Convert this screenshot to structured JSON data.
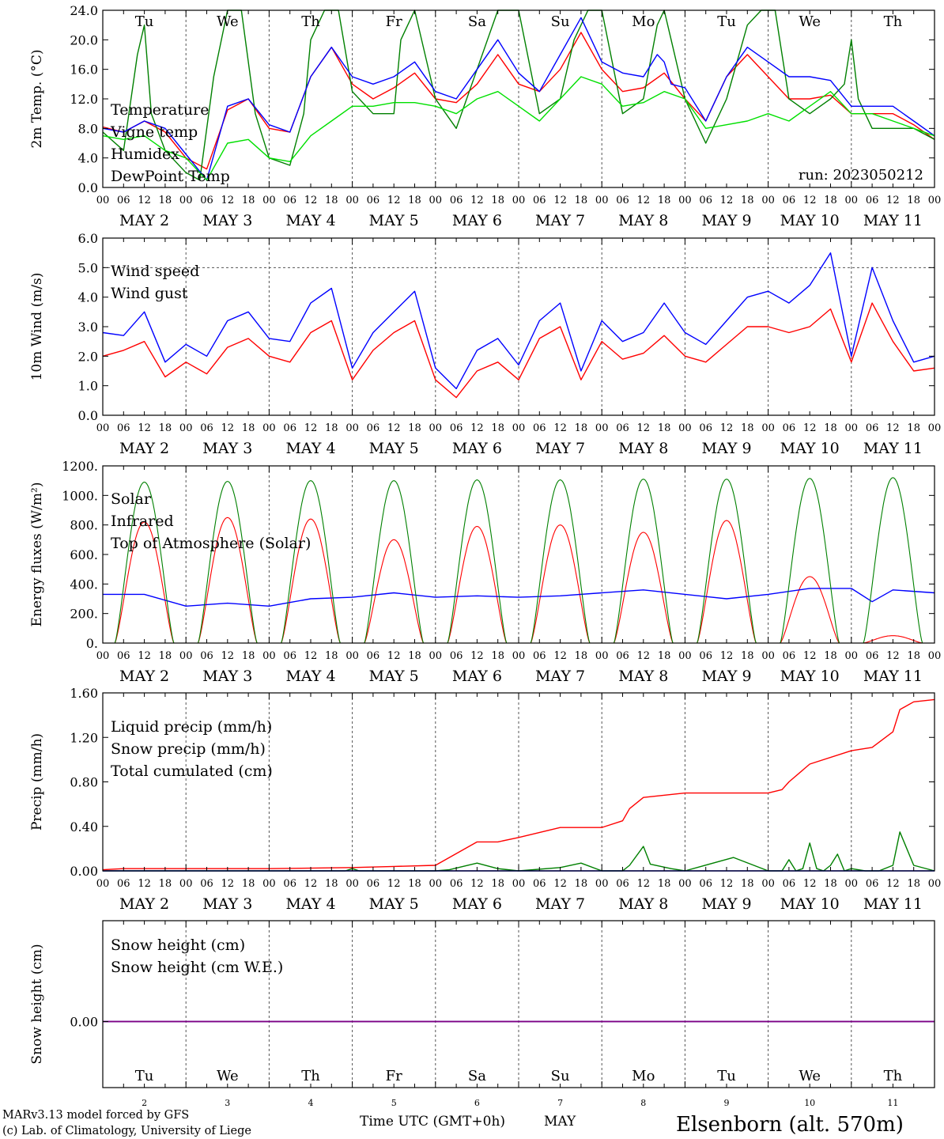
{
  "days": [
    "Tu",
    "We",
    "Th",
    "Fr",
    "Sa",
    "Su",
    "Mo",
    "Tu",
    "We",
    "Th"
  ],
  "weekend_day_indices": [
    4,
    5
  ],
  "date_labels": [
    "MAY  2",
    "MAY  3",
    "MAY  4",
    "MAY  5",
    "MAY  6",
    "MAY  7",
    "MAY  8",
    "MAY  9",
    "MAY 10",
    "MAY 11"
  ],
  "hour_ticks": [
    "00",
    "06",
    "12",
    "18"
  ],
  "bottom_day_numbers": [
    "2",
    "3",
    "4",
    "5",
    "6",
    "7",
    "8",
    "9",
    "10",
    "11"
  ],
  "run_label": "run: 2023050212",
  "x_axis_title": "Time UTC (GMT+0h)",
  "x_axis_month": "MAY",
  "credits": [
    "MARv3.13 model forced by GFS",
    "(c) Lab. of Climatology, University of Liege"
  ],
  "station_label": "Elsenborn (alt. 570m)",
  "colors": {
    "red": "#ff0000",
    "blue": "#0000ff",
    "dark_green": "#008000",
    "light_green": "#00e000",
    "purple": "#800080"
  },
  "chart_data": [
    {
      "type": "line",
      "ylabel": "2m Temp. (°C)",
      "ylim": [
        0,
        24
      ],
      "yticks": [
        "0.0",
        "4.0",
        "8.0",
        "12.0",
        "16.0",
        "20.0",
        "24.0"
      ],
      "x_range_hours": [
        0,
        240
      ],
      "series": [
        {
          "name": "Temperature",
          "color": "red",
          "x": [
            0,
            6,
            12,
            18,
            24,
            30,
            36,
            42,
            48,
            54,
            60,
            66,
            72,
            78,
            84,
            90,
            96,
            102,
            108,
            114,
            120,
            126,
            132,
            138,
            144,
            150,
            156,
            162,
            168,
            174,
            180,
            186,
            192,
            198,
            204,
            210,
            216,
            222,
            228,
            234,
            240
          ],
          "y": [
            8.2,
            7.5,
            9,
            7.5,
            4,
            2.5,
            10.5,
            12,
            8,
            7.5,
            15,
            19,
            14,
            12,
            13.5,
            15.5,
            12,
            11.5,
            14,
            18,
            14,
            13,
            16,
            21,
            16,
            13,
            13.5,
            15.5,
            12,
            9,
            15,
            18,
            15,
            12,
            12,
            12.5,
            10,
            10,
            10,
            8.5,
            6.5
          ]
        },
        {
          "name": "Vigne temp",
          "color": "dark_green",
          "x": [
            0,
            6,
            10,
            12,
            14,
            18,
            24,
            28,
            32,
            36,
            40,
            44,
            48,
            54,
            58,
            60,
            64,
            68,
            72,
            78,
            84,
            86,
            90,
            96,
            102,
            108,
            114,
            120,
            126,
            132,
            136,
            140,
            144,
            150,
            156,
            160,
            162,
            164,
            168,
            174,
            180,
            186,
            190,
            194,
            198,
            204,
            210,
            214,
            216,
            218,
            222,
            228,
            234,
            240
          ],
          "y": [
            7.5,
            5,
            18,
            22,
            10,
            5,
            2,
            1,
            15,
            24,
            24,
            10,
            4,
            3,
            10,
            20,
            24,
            24,
            13,
            10,
            10,
            20,
            24,
            12,
            8,
            16,
            24,
            24,
            10,
            12,
            20,
            24,
            24,
            10,
            12,
            22,
            24,
            20,
            12,
            6,
            12,
            22,
            24,
            24,
            12,
            10,
            12,
            14,
            20,
            12,
            8,
            8,
            8,
            6.5
          ]
        },
        {
          "name": "Humidex",
          "color": "blue",
          "x": [
            0,
            6,
            12,
            18,
            24,
            30,
            36,
            42,
            48,
            54,
            60,
            66,
            72,
            78,
            84,
            90,
            96,
            102,
            108,
            114,
            120,
            126,
            132,
            138,
            144,
            150,
            156,
            160,
            162,
            164,
            168,
            174,
            180,
            186,
            192,
            198,
            204,
            210,
            216,
            222,
            228,
            234,
            240
          ],
          "y": [
            8,
            7.5,
            9,
            8,
            4.5,
            1,
            11,
            12,
            8.5,
            7.5,
            15,
            19,
            15,
            14,
            15,
            17,
            13,
            12,
            16,
            20,
            15.5,
            13,
            18,
            23,
            17,
            15.5,
            15,
            18,
            17,
            14,
            13.5,
            9,
            15,
            19,
            17,
            15,
            15,
            14.5,
            11,
            11,
            11,
            9,
            7
          ]
        },
        {
          "name": "DewPoint Temp",
          "color": "light_green",
          "x": [
            0,
            6,
            12,
            18,
            24,
            30,
            36,
            42,
            48,
            54,
            60,
            66,
            72,
            78,
            84,
            90,
            96,
            102,
            108,
            114,
            120,
            126,
            132,
            138,
            144,
            150,
            156,
            162,
            168,
            174,
            180,
            186,
            192,
            198,
            204,
            210,
            216,
            222,
            228,
            234,
            240
          ],
          "y": [
            7,
            6.5,
            7,
            5,
            4,
            1,
            6,
            6.5,
            4,
            3.5,
            7,
            9,
            11,
            11,
            11.5,
            11.5,
            11,
            10,
            12,
            13,
            11,
            9,
            12,
            15,
            14,
            11,
            11.5,
            13,
            12,
            8,
            8.5,
            9,
            10,
            9,
            11,
            13,
            10,
            10,
            9,
            8,
            7
          ]
        }
      ]
    },
    {
      "type": "line",
      "ylabel": "10m Wind (m/s)",
      "ylim": [
        0,
        6
      ],
      "yticks": [
        "0.0",
        "1.0",
        "2.0",
        "3.0",
        "4.0",
        "5.0",
        "6.0"
      ],
      "reference_line": 5.0,
      "x_range_hours": [
        0,
        240
      ],
      "series": [
        {
          "name": "Wind speed",
          "color": "red",
          "x": [
            0,
            6,
            12,
            18,
            24,
            30,
            36,
            42,
            48,
            54,
            60,
            66,
            72,
            78,
            84,
            90,
            96,
            102,
            108,
            114,
            120,
            126,
            132,
            138,
            144,
            150,
            156,
            162,
            168,
            174,
            180,
            186,
            192,
            198,
            204,
            210,
            216,
            222,
            228,
            234,
            240
          ],
          "y": [
            2,
            2.2,
            2.5,
            1.3,
            1.8,
            1.4,
            2.3,
            2.6,
            2,
            1.8,
            2.8,
            3.2,
            1.2,
            2.2,
            2.8,
            3.2,
            1.2,
            0.6,
            1.5,
            1.8,
            1.2,
            2.6,
            3,
            1.2,
            2.5,
            1.9,
            2.1,
            2.7,
            2,
            1.8,
            2.4,
            3,
            3,
            2.8,
            3,
            3.6,
            1.8,
            3.8,
            2.5,
            1.5,
            1.6
          ]
        },
        {
          "name": "Wind gust",
          "color": "blue",
          "x": [
            0,
            6,
            12,
            18,
            24,
            30,
            36,
            42,
            48,
            54,
            60,
            66,
            72,
            78,
            84,
            90,
            96,
            102,
            108,
            114,
            120,
            126,
            132,
            138,
            144,
            150,
            156,
            162,
            168,
            174,
            180,
            186,
            192,
            198,
            204,
            210,
            216,
            222,
            228,
            234,
            240
          ],
          "y": [
            2.8,
            2.7,
            3.5,
            1.8,
            2.4,
            2,
            3.2,
            3.5,
            2.6,
            2.5,
            3.8,
            4.3,
            1.6,
            2.8,
            3.5,
            4.2,
            1.6,
            0.9,
            2.2,
            2.6,
            1.7,
            3.2,
            3.8,
            1.5,
            3.2,
            2.5,
            2.8,
            3.8,
            2.8,
            2.4,
            3.2,
            4,
            4.2,
            3.8,
            4.4,
            5.5,
            2,
            5,
            3.2,
            1.8,
            2
          ]
        }
      ]
    },
    {
      "type": "line",
      "ylabel": "Energy fluxes (W/m²)",
      "ylim": [
        0,
        1200
      ],
      "yticks": [
        "0.",
        "200.",
        "400.",
        "600.",
        "800.",
        "1000.",
        "1200."
      ],
      "x_range_hours": [
        0,
        240
      ],
      "series": [
        {
          "name": "Solar",
          "color": "red",
          "daily_peaks": [
            820,
            850,
            840,
            700,
            790,
            800,
            750,
            830,
            450,
            50
          ]
        },
        {
          "name": "Infrared",
          "color": "blue",
          "x": [
            0,
            12,
            24,
            36,
            48,
            60,
            72,
            84,
            96,
            108,
            120,
            132,
            144,
            156,
            168,
            180,
            192,
            204,
            216,
            222,
            228,
            240
          ],
          "y": [
            330,
            330,
            250,
            270,
            250,
            300,
            310,
            340,
            310,
            320,
            310,
            320,
            340,
            360,
            330,
            300,
            330,
            370,
            370,
            280,
            360,
            340
          ]
        },
        {
          "name": "Top of Atmosphere (Solar)",
          "color": "dark_green",
          "daily_peaks": [
            1090,
            1095,
            1100,
            1100,
            1105,
            1105,
            1110,
            1110,
            1115,
            1120
          ]
        }
      ]
    },
    {
      "type": "line",
      "ylabel": "Precip (mm/h)",
      "ylim": [
        0,
        1.6
      ],
      "yticks": [
        "0.00",
        "0.40",
        "0.80",
        "1.20",
        "1.60"
      ],
      "x_range_hours": [
        0,
        240
      ],
      "series": [
        {
          "name": "Liquid precip (mm/h)",
          "color": "dark_green",
          "x": [
            0,
            70,
            72,
            74,
            96,
            100,
            108,
            114,
            120,
            132,
            138,
            144,
            150,
            152,
            156,
            158,
            164,
            168,
            182,
            192,
            196,
            198,
            200,
            202,
            204,
            206,
            208,
            210,
            212,
            214,
            216,
            220,
            224,
            228,
            230,
            234,
            240
          ],
          "y": [
            0,
            0,
            0.02,
            0,
            0,
            0.01,
            0.07,
            0.02,
            0,
            0.03,
            0.07,
            0,
            0,
            0.05,
            0.22,
            0.06,
            0.02,
            0,
            0.12,
            0,
            0,
            0.1,
            0,
            0.02,
            0.25,
            0.02,
            0,
            0.05,
            0.15,
            0,
            0.02,
            0,
            0,
            0.05,
            0.35,
            0.05,
            0
          ]
        },
        {
          "name": "Snow precip (mm/h)",
          "color": "blue",
          "x": [
            0,
            240
          ],
          "y": [
            0,
            0
          ]
        },
        {
          "name": "Total cumulated (cm)",
          "color": "red",
          "x": [
            0,
            6,
            24,
            48,
            72,
            84,
            96,
            108,
            114,
            120,
            132,
            144,
            150,
            152,
            156,
            168,
            192,
            196,
            198,
            204,
            216,
            220,
            222,
            228,
            230,
            234,
            240
          ],
          "y": [
            0.01,
            0.02,
            0.02,
            0.02,
            0.03,
            0.04,
            0.05,
            0.26,
            0.26,
            0.3,
            0.39,
            0.39,
            0.45,
            0.56,
            0.66,
            0.7,
            0.7,
            0.73,
            0.8,
            0.96,
            1.08,
            1.1,
            1.11,
            1.25,
            1.45,
            1.52,
            1.54
          ]
        }
      ]
    },
    {
      "type": "line",
      "ylabel": "Snow height (cm)",
      "yticks": [
        "0.00"
      ],
      "x_range_hours": [
        0,
        240
      ],
      "series": [
        {
          "name": "Snow height (cm)",
          "color": "red",
          "x": [
            0,
            240
          ],
          "y": [
            0,
            0
          ]
        },
        {
          "name": "Snow height (cm W.E.)",
          "color": "blue",
          "x": [
            0,
            240
          ],
          "y": [
            0,
            0
          ]
        }
      ]
    }
  ]
}
